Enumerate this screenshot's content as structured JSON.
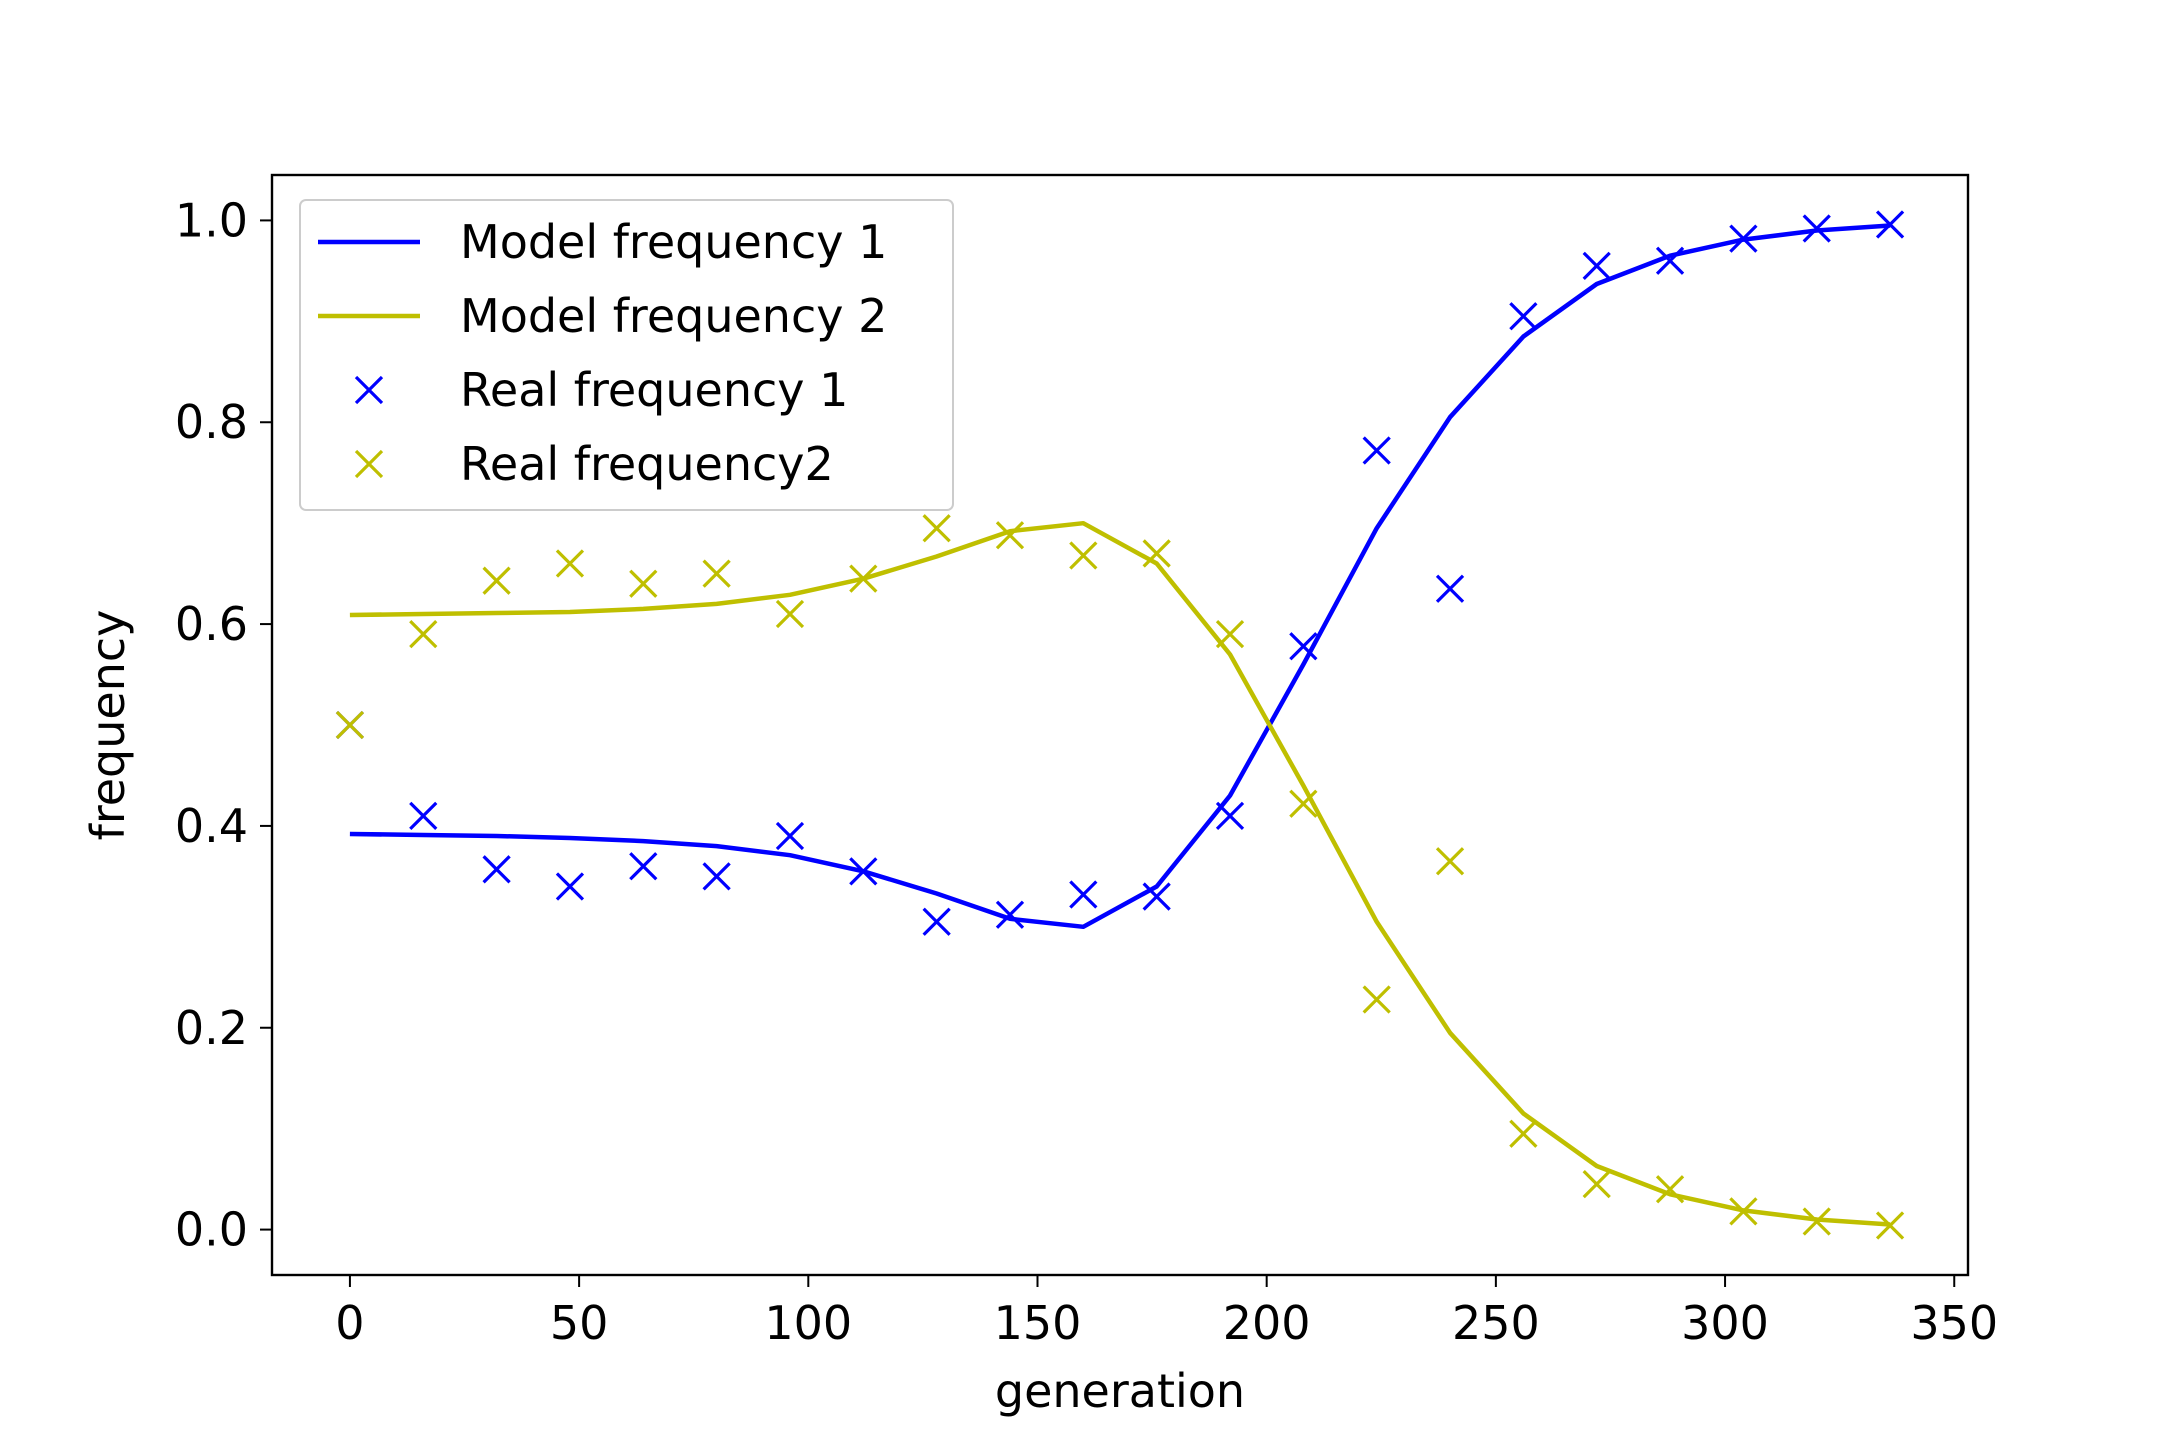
{
  "chart_data": {
    "type": "line",
    "xlabel": "generation",
    "ylabel": "frequency",
    "xlim": [
      -17,
      353
    ],
    "ylim": [
      -0.045,
      1.045
    ],
    "xticks": [
      0,
      50,
      100,
      150,
      200,
      250,
      300,
      350
    ],
    "yticks": [
      0.0,
      0.2,
      0.4,
      0.6,
      0.8,
      1.0
    ],
    "ytick_labels": [
      "0.0",
      "0.2",
      "0.4",
      "0.6",
      "0.8",
      "1.0"
    ],
    "grid": false,
    "legend_position": "upper-left",
    "x": [
      0,
      16,
      32,
      48,
      64,
      80,
      96,
      112,
      128,
      144,
      160,
      176,
      192,
      208,
      224,
      240,
      256,
      272,
      288,
      304,
      320,
      336
    ],
    "series": [
      {
        "name": "Model frequency 1",
        "kind": "line",
        "color": "#0000ff",
        "values": [
          0.392,
          0.391,
          0.39,
          0.388,
          0.385,
          0.38,
          0.371,
          0.355,
          0.333,
          0.308,
          0.3,
          0.34,
          0.43,
          0.56,
          0.695,
          0.805,
          0.885,
          0.937,
          0.965,
          0.981,
          0.99,
          0.995
        ]
      },
      {
        "name": "Model frequency 2",
        "kind": "line",
        "color": "#bfbf00",
        "values": [
          0.609,
          0.61,
          0.611,
          0.612,
          0.615,
          0.62,
          0.629,
          0.645,
          0.667,
          0.692,
          0.7,
          0.66,
          0.57,
          0.44,
          0.305,
          0.195,
          0.115,
          0.063,
          0.035,
          0.019,
          0.01,
          0.005
        ]
      },
      {
        "name": "Real frequency 1",
        "kind": "scatter",
        "marker": "x",
        "color": "#0000ff",
        "values": [
          0.5,
          0.41,
          0.357,
          0.34,
          0.36,
          0.35,
          0.39,
          0.355,
          0.305,
          0.312,
          0.332,
          0.33,
          0.41,
          0.578,
          0.772,
          0.635,
          0.905,
          0.955,
          0.96,
          0.982,
          0.992,
          0.996
        ]
      },
      {
        "name": "Real frequency2",
        "kind": "scatter",
        "marker": "x",
        "color": "#bfbf00",
        "values": [
          0.5,
          0.59,
          0.643,
          0.66,
          0.64,
          0.65,
          0.61,
          0.645,
          0.695,
          0.688,
          0.668,
          0.67,
          0.59,
          0.422,
          0.228,
          0.365,
          0.095,
          0.045,
          0.04,
          0.018,
          0.008,
          0.004
        ]
      }
    ]
  }
}
